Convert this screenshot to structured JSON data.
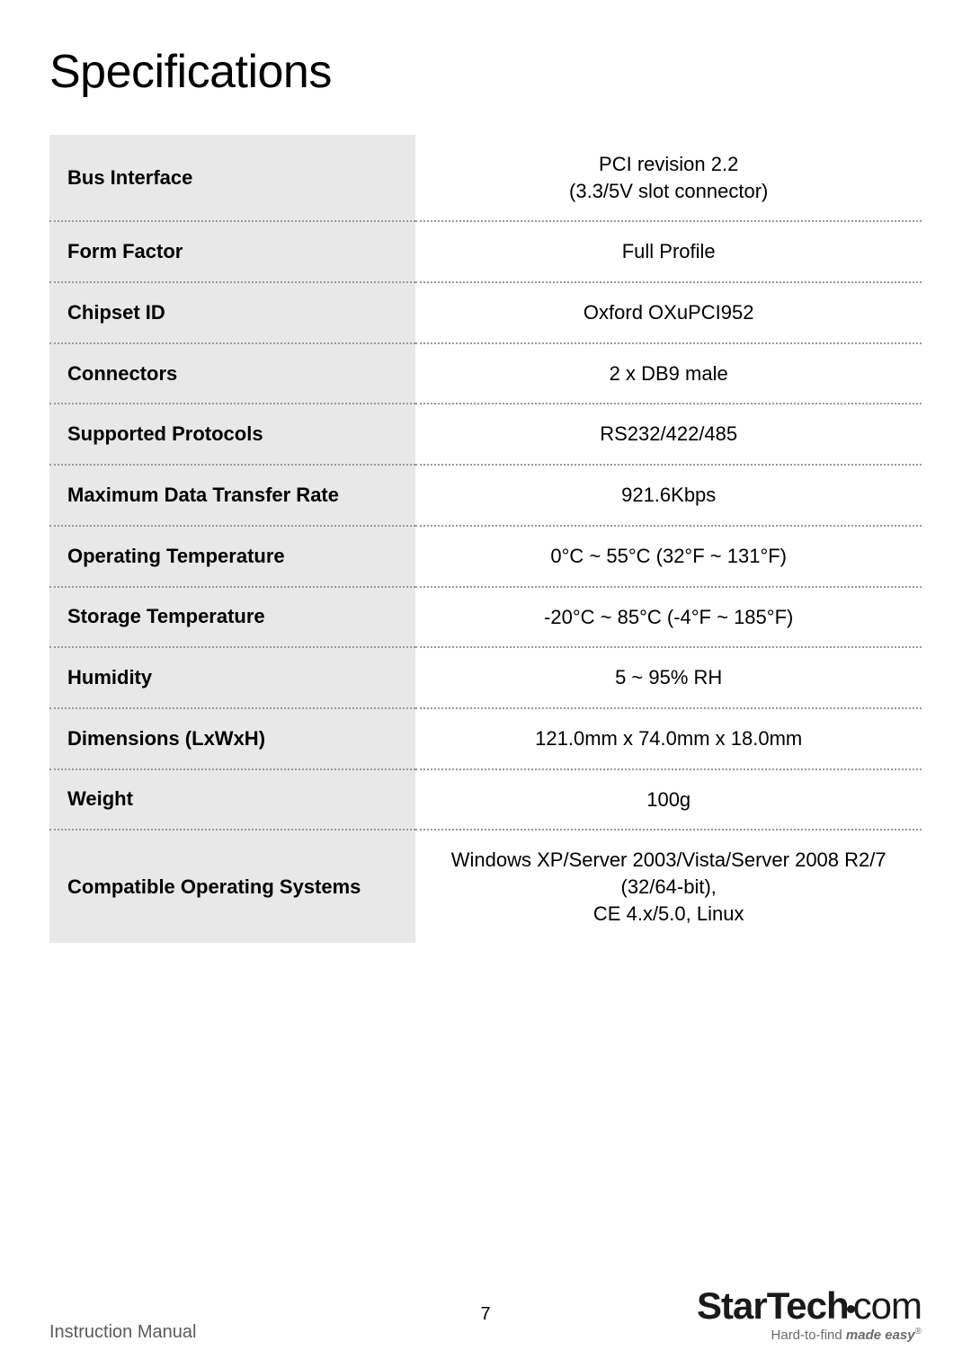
{
  "title": "Specifications",
  "rows": [
    {
      "label": "Bus Interface",
      "value": "PCI revision 2.2\n(3.3/5V slot connector)"
    },
    {
      "label": "Form Factor",
      "value": "Full Profile"
    },
    {
      "label": "Chipset ID",
      "value": "Oxford OXuPCI952"
    },
    {
      "label": "Connectors",
      "value": "2 x DB9 male"
    },
    {
      "label": "Supported Protocols",
      "value": "RS232/422/485"
    },
    {
      "label": "Maximum Data Transfer Rate",
      "value": "921.6Kbps"
    },
    {
      "label": "Operating Temperature",
      "value": "0°C ~ 55°C (32°F ~ 131°F)"
    },
    {
      "label": "Storage Temperature",
      "value": "-20°C ~ 85°C (-4°F ~ 185°F)"
    },
    {
      "label": "Humidity",
      "value": "5 ~ 95% RH"
    },
    {
      "label": "Dimensions (LxWxH)",
      "value": "121.0mm x 74.0mm x 18.0mm"
    },
    {
      "label": "Weight",
      "value": "100g"
    },
    {
      "label": "Compatible Operating Systems",
      "value": "Windows XP/Server 2003/Vista/Server 2008 R2/7 (32/64-bit),\nCE 4.x/5.0, Linux"
    }
  ],
  "footer": {
    "left": "Instruction Manual",
    "page": "7",
    "logo_bold": "StarTech",
    "logo_light": "com",
    "tag_prefix": "Hard-to-find ",
    "tag_bold": "made easy",
    "tag_reg": "®"
  },
  "style": {
    "label_bg": "#e8e8e8",
    "border_color": "#999999",
    "text_color": "#000000",
    "footer_text": "#5a5a5a",
    "label_fontsize": 22,
    "value_fontsize": 22,
    "title_fontsize": 52
  }
}
